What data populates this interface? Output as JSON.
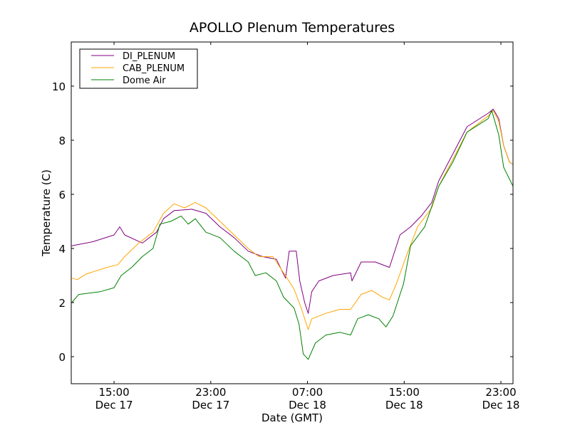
{
  "chart_data": {
    "type": "line",
    "title": "APOLLO Plenum Temperatures",
    "xlabel": "Date (GMT)",
    "ylabel": "Temperature (C)",
    "x_units": "hours since Dec 17 00:00",
    "xlim": [
      11.46,
      48.0
    ],
    "ylim": [
      -1,
      11.63
    ],
    "grid": false,
    "legend_position": "top-left",
    "x_ticks": [
      {
        "value": 15,
        "time": "15:00",
        "date": "Dec 17"
      },
      {
        "value": 23,
        "time": "23:00",
        "date": "Dec 17"
      },
      {
        "value": 31,
        "time": "07:00",
        "date": "Dec 18"
      },
      {
        "value": 39,
        "time": "15:00",
        "date": "Dec 18"
      },
      {
        "value": 47,
        "time": "23:00",
        "date": "Dec 18"
      }
    ],
    "y_ticks": [
      0,
      2,
      4,
      6,
      8,
      10
    ],
    "series": [
      {
        "name": "DI_PLENUM",
        "color": "#800080",
        "x": [
          11.5,
          13.25,
          15.0,
          15.47,
          15.88,
          17.34,
          18.51,
          19.09,
          19.97,
          21.43,
          22.6,
          23.76,
          24.93,
          26.1,
          27.27,
          28.43,
          29.19,
          29.49,
          30.07,
          30.36,
          30.77,
          31.06,
          31.35,
          31.94,
          33.11,
          34.57,
          34.68,
          35.44,
          36.61,
          37.78,
          38.65,
          39.53,
          40.41,
          41.28,
          41.86,
          43.03,
          44.2,
          45.95,
          46.36,
          46.82,
          47.23,
          47.7,
          48.0
        ],
        "y": [
          4.1,
          4.25,
          4.5,
          4.8,
          4.5,
          4.2,
          4.6,
          5.1,
          5.4,
          5.45,
          5.3,
          4.8,
          4.4,
          3.9,
          3.7,
          3.6,
          2.9,
          3.9,
          3.9,
          2.8,
          2.0,
          1.6,
          2.4,
          2.8,
          3.0,
          3.1,
          2.8,
          3.5,
          3.5,
          3.3,
          4.5,
          4.8,
          5.2,
          5.7,
          6.5,
          7.5,
          8.5,
          9.0,
          9.15,
          8.8,
          7.8,
          7.2,
          7.1
        ]
      },
      {
        "name": "CAB_PLENUM",
        "color": "#FFA500",
        "x": [
          11.5,
          11.97,
          12.67,
          14.42,
          15.3,
          15.88,
          17.05,
          18.22,
          19.09,
          19.97,
          20.84,
          21.72,
          22.6,
          23.76,
          24.93,
          26.1,
          26.97,
          28.14,
          29.02,
          29.89,
          30.48,
          31.06,
          31.35,
          32.52,
          33.69,
          34.57,
          35.44,
          36.32,
          37.19,
          37.78,
          38.36,
          39.24,
          40.11,
          41.28,
          41.86,
          43.03,
          44.2,
          45.95,
          46.36,
          46.82,
          47.23,
          47.7,
          48.0
        ],
        "y": [
          2.9,
          2.85,
          3.05,
          3.3,
          3.4,
          3.7,
          4.2,
          4.6,
          5.3,
          5.65,
          5.5,
          5.7,
          5.5,
          5.0,
          4.5,
          4.0,
          3.7,
          3.7,
          3.1,
          2.5,
          1.8,
          1.0,
          1.4,
          1.6,
          1.75,
          1.75,
          2.3,
          2.45,
          2.2,
          2.1,
          2.7,
          3.8,
          4.8,
          5.5,
          6.3,
          7.3,
          8.3,
          8.9,
          9.1,
          8.7,
          7.8,
          7.2,
          7.1
        ]
      },
      {
        "name": "Dome Air",
        "color": "#008000",
        "x": [
          11.5,
          12.08,
          13.84,
          15.0,
          15.59,
          16.46,
          17.34,
          18.22,
          18.8,
          19.68,
          20.55,
          21.14,
          21.72,
          22.6,
          23.76,
          24.93,
          26.1,
          26.68,
          27.56,
          28.43,
          29.02,
          29.89,
          30.3,
          30.65,
          31.06,
          31.65,
          32.52,
          33.69,
          34.57,
          35.15,
          36.03,
          36.9,
          37.49,
          38.07,
          38.95,
          39.53,
          40.7,
          41.86,
          43.03,
          44.2,
          45.95,
          46.24,
          46.82,
          47.23,
          48.0
        ],
        "y": [
          2.0,
          2.3,
          2.4,
          2.55,
          3.0,
          3.3,
          3.7,
          4.0,
          4.9,
          5.0,
          5.2,
          4.9,
          5.1,
          4.6,
          4.4,
          3.9,
          3.5,
          3.0,
          3.1,
          2.8,
          2.2,
          1.8,
          1.2,
          0.1,
          -0.1,
          0.5,
          0.8,
          0.9,
          0.8,
          1.4,
          1.55,
          1.4,
          1.1,
          1.5,
          2.7,
          4.1,
          4.8,
          6.3,
          7.2,
          8.3,
          8.8,
          9.1,
          8.2,
          7.0,
          6.3
        ]
      }
    ]
  }
}
